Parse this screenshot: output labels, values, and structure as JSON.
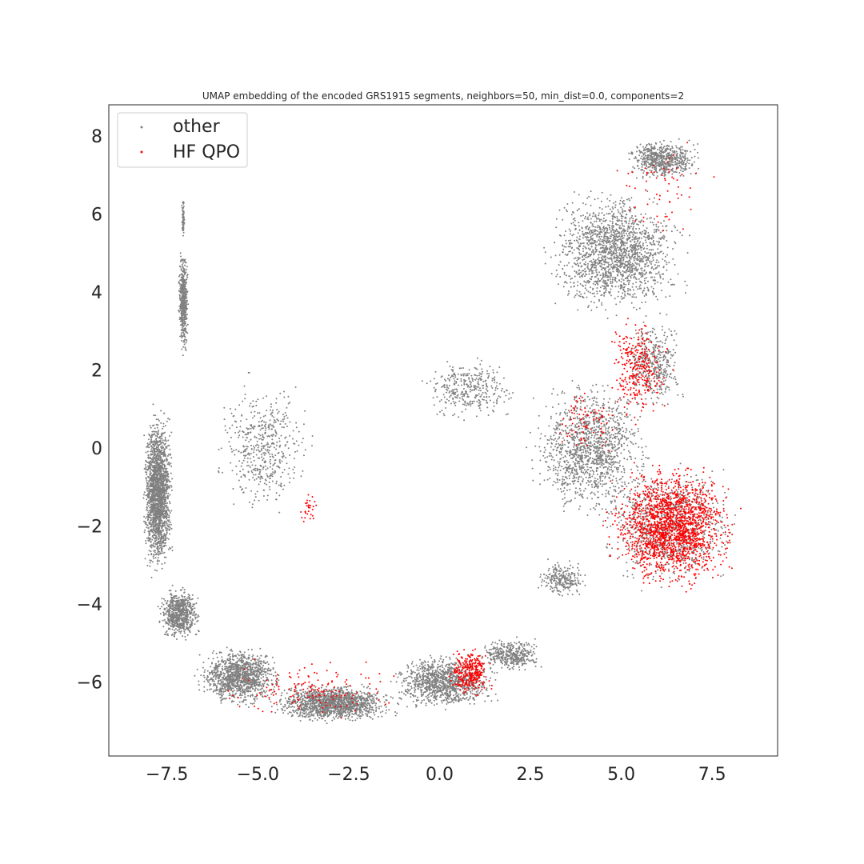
{
  "chart_data": {
    "type": "scatter",
    "title": "UMAP embedding of the encoded GRS1915 segments, neighbors=50, min_dist=0.0, components=2",
    "xlabel": "",
    "ylabel": "",
    "xlim": [
      -9.1,
      9.3
    ],
    "ylim": [
      -7.9,
      8.8
    ],
    "grid": false,
    "legend_position": "upper-left",
    "x_ticks": [
      -7.5,
      -5.0,
      -2.5,
      0.0,
      2.5,
      5.0,
      7.5
    ],
    "x_tick_labels": [
      "−7.5",
      "−5.0",
      "−2.5",
      "0.0",
      "2.5",
      "5.0",
      "7.5"
    ],
    "y_ticks": [
      -6,
      -4,
      -2,
      0,
      2,
      4,
      6,
      8
    ],
    "y_tick_labels": [
      "−6",
      "−4",
      "−2",
      "0",
      "2",
      "4",
      "6",
      "8"
    ],
    "series": [
      {
        "name": "other",
        "color": "#808080",
        "regions": [
          {
            "x0": -7.2,
            "x1": -6.9,
            "y0": 2.3,
            "y1": 5.2,
            "n": 500
          },
          {
            "x0": -7.1,
            "x1": -7.0,
            "y0": 5.2,
            "y1": 6.5,
            "n": 60
          },
          {
            "x0": -8.2,
            "x1": -7.3,
            "y0": -3.5,
            "y1": 1.2,
            "n": 2000
          },
          {
            "x0": -7.8,
            "x1": -6.5,
            "y0": -5.0,
            "y1": -3.5,
            "n": 700
          },
          {
            "x0": -6.8,
            "x1": -4.2,
            "y0": -6.7,
            "y1": -5.0,
            "n": 1200
          },
          {
            "x0": -4.8,
            "x1": -1.0,
            "y0": -7.1,
            "y1": -6.0,
            "n": 1500
          },
          {
            "x0": -1.5,
            "x1": 1.8,
            "y0": -6.8,
            "y1": -5.2,
            "n": 1100
          },
          {
            "x0": 1.0,
            "x1": 2.9,
            "y0": -5.8,
            "y1": -4.8,
            "n": 400
          },
          {
            "x0": -6.3,
            "x1": -3.3,
            "y0": -2.0,
            "y1": 2.0,
            "n": 500
          },
          {
            "x0": -0.6,
            "x1": 2.3,
            "y0": 0.6,
            "y1": 2.4,
            "n": 350
          },
          {
            "x0": 2.3,
            "x1": 6.0,
            "y0": -2.0,
            "y1": 2.0,
            "n": 1300
          },
          {
            "x0": 2.6,
            "x1": 4.2,
            "y0": -3.9,
            "y1": -2.8,
            "n": 250
          },
          {
            "x0": 2.7,
            "x1": 7.0,
            "y0": 3.2,
            "y1": 6.8,
            "n": 1700
          },
          {
            "x0": 5.0,
            "x1": 7.3,
            "y0": 6.8,
            "y1": 8.0,
            "n": 600
          },
          {
            "x0": 5.0,
            "x1": 6.8,
            "y0": 0.8,
            "y1": 3.6,
            "n": 400
          },
          {
            "x0": 4.3,
            "x1": 8.4,
            "y0": -3.8,
            "y1": -0.2,
            "n": 900
          }
        ]
      },
      {
        "name": "HF QPO",
        "color": "#ff0000",
        "regions": [
          {
            "x0": 4.4,
            "x1": 8.4,
            "y0": -3.8,
            "y1": -0.2,
            "n": 1800
          },
          {
            "x0": 0.2,
            "x1": 1.5,
            "y0": -6.5,
            "y1": -5.0,
            "n": 300
          },
          {
            "x0": 4.5,
            "x1": 6.5,
            "y0": 0.5,
            "y1": 3.5,
            "n": 300
          },
          {
            "x0": -6.5,
            "x1": -0.5,
            "y0": -7.1,
            "y1": -5.3,
            "n": 150
          },
          {
            "x0": 3.0,
            "x1": 5.0,
            "y0": -0.5,
            "y1": 1.8,
            "n": 80
          },
          {
            "x0": 4.5,
            "x1": 7.8,
            "y0": 5.2,
            "y1": 8.0,
            "n": 60
          },
          {
            "x0": -4.0,
            "x1": -3.3,
            "y0": -2.0,
            "y1": -1.0,
            "n": 30
          }
        ]
      }
    ]
  }
}
